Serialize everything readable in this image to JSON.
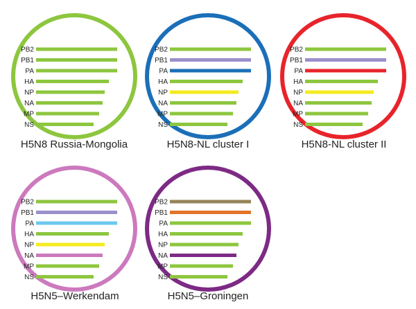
{
  "colors": {
    "green": "#8DC63F",
    "blue": "#1B6FB8",
    "red": "#E8242B",
    "pink": "#CC79BE",
    "purple": "#7D2A85",
    "lavender": "#9B8FCC",
    "yellow": "#F5EB1F",
    "lightblue": "#6CC8EE",
    "brown": "#96845A",
    "orange": "#E2742A"
  },
  "segment_names": [
    "PB2",
    "PB1",
    "PA",
    "HA",
    "NP",
    "NA",
    "MP",
    "NS"
  ],
  "viruses": [
    {
      "label": "H5N8 Russia-Mongolia",
      "ring_color": "#8DC63F",
      "segment_colors": [
        "#8DC63F",
        "#8DC63F",
        "#8DC63F",
        "#8DC63F",
        "#8DC63F",
        "#8DC63F",
        "#8DC63F",
        "#8DC63F"
      ]
    },
    {
      "label": "H5N8-NL cluster I",
      "ring_color": "#1B6FB8",
      "segment_colors": [
        "#8DC63F",
        "#9B8FCC",
        "#1B6FB8",
        "#8DC63F",
        "#F5EB1F",
        "#8DC63F",
        "#8DC63F",
        "#8DC63F"
      ]
    },
    {
      "label": "H5N8-NL cluster II",
      "ring_color": "#E8242B",
      "segment_colors": [
        "#8DC63F",
        "#9B8FCC",
        "#E8242B",
        "#8DC63F",
        "#F5EB1F",
        "#8DC63F",
        "#8DC63F",
        "#8DC63F"
      ]
    },
    {
      "label": "H5N5–Werkendam",
      "ring_color": "#CC79BE",
      "segment_colors": [
        "#8DC63F",
        "#9B8FCC",
        "#6CC8EE",
        "#8DC63F",
        "#F5EB1F",
        "#CC79BE",
        "#8DC63F",
        "#8DC63F"
      ]
    },
    {
      "label": "H5N5–Groningen",
      "ring_color": "#7D2A85",
      "segment_colors": [
        "#96845A",
        "#E2742A",
        "#8DC63F",
        "#8DC63F",
        "#8DC63F",
        "#7D2A85",
        "#8DC63F",
        "#8DC63F"
      ]
    }
  ]
}
